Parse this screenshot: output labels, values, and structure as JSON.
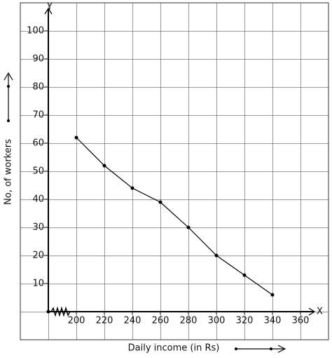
{
  "chart_data": {
    "type": "line",
    "x_label": "Daily income (in Rs)",
    "y_label": "No, of workers",
    "x_axis_name": "X",
    "y_axis_name": "Y",
    "x": [
      200,
      220,
      240,
      260,
      280,
      300,
      320,
      340
    ],
    "series": [
      {
        "name": "No, of workers",
        "color": "#000000",
        "values": [
          62,
          52,
          44,
          39,
          30,
          20,
          13,
          6
        ]
      }
    ],
    "xlim": [
      180,
      370
    ],
    "xticks": [
      200,
      220,
      240,
      260,
      280,
      300,
      320,
      340,
      360
    ],
    "ylim": [
      0,
      108
    ],
    "yticks": [
      10,
      20,
      30,
      40,
      50,
      60,
      70,
      80,
      90,
      100
    ],
    "grid": true
  }
}
